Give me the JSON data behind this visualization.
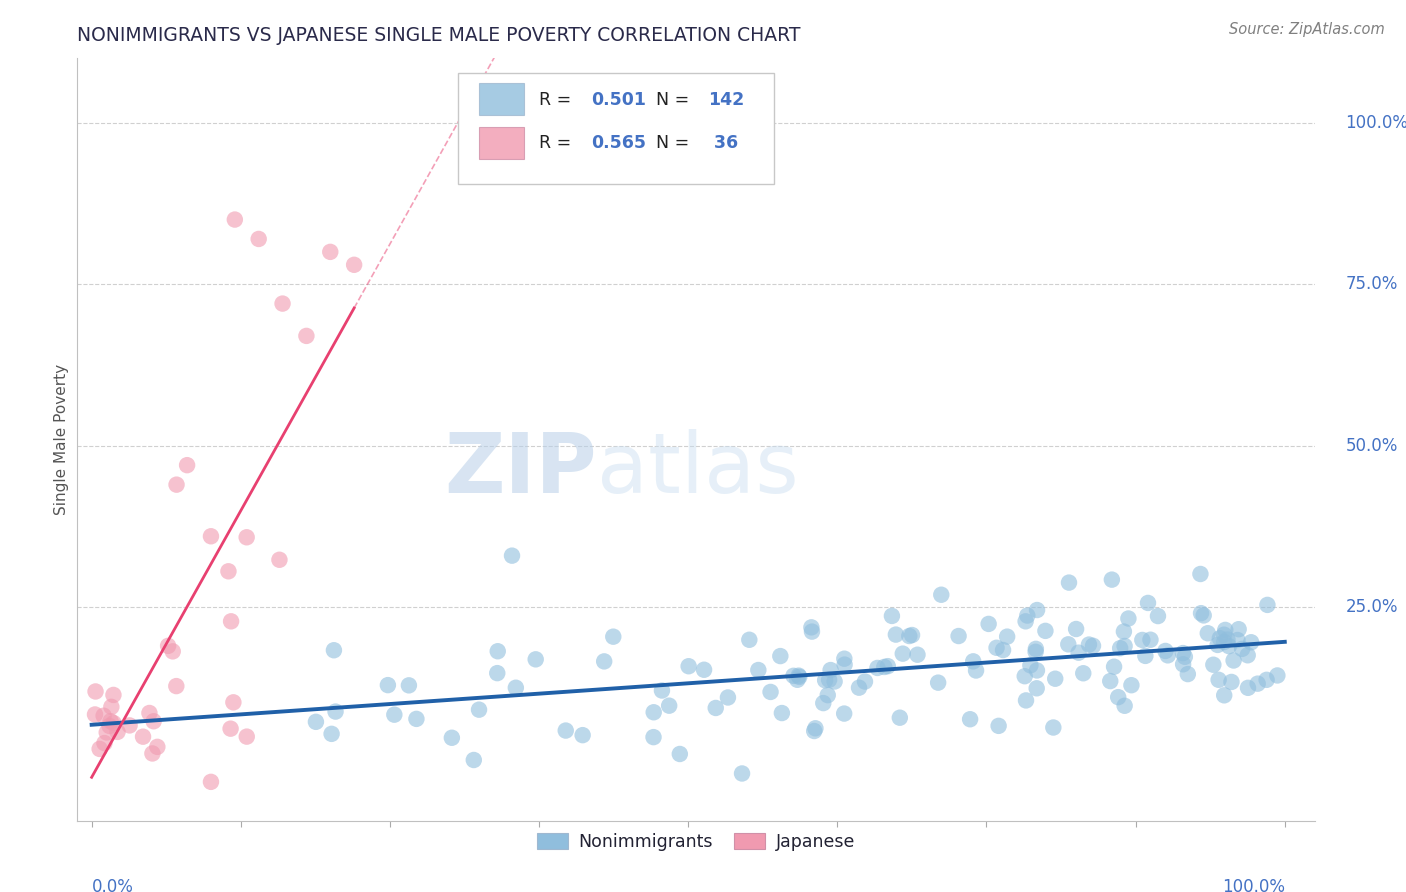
{
  "title": "NONIMMIGRANTS VS JAPANESE SINGLE MALE POVERTY CORRELATION CHART",
  "source": "Source: ZipAtlas.com",
  "ylabel": "Single Male Poverty",
  "watermark_zip": "ZIP",
  "watermark_atlas": "atlas",
  "blue_color": "#90bedd",
  "pink_color": "#f09ab0",
  "blue_line_color": "#2060a8",
  "pink_line_color": "#e84070",
  "title_color": "#2a2a4a",
  "axis_label_color": "#4472c4",
  "R_blue": 0.501,
  "N_blue": 142,
  "R_pink": 0.565,
  "N_pink": 36,
  "grid_color": "#d0d0d0",
  "legend_edge_color": "#c8c8c8",
  "source_color": "#808080"
}
